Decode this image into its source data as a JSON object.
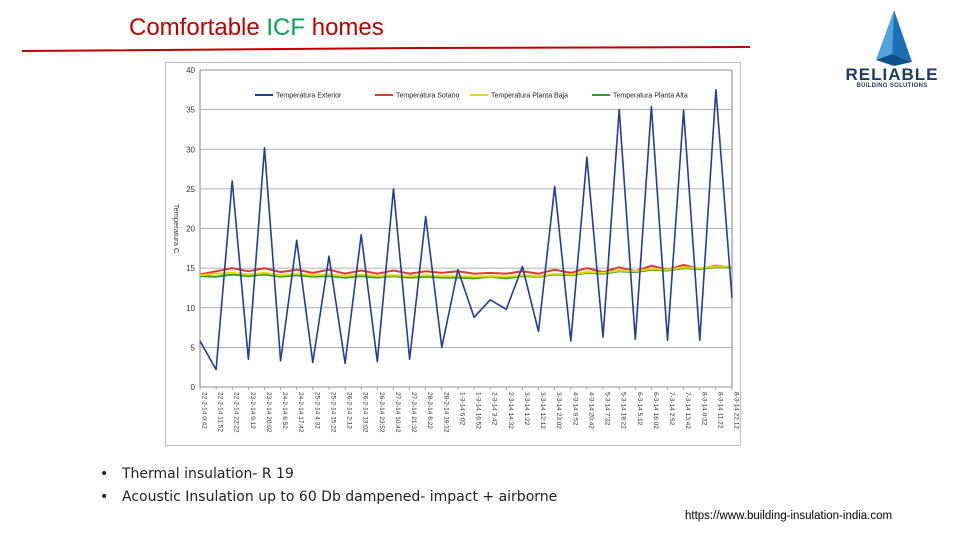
{
  "slide": {
    "title_part1": "Comfortable ",
    "title_accent": "ICF",
    "title_part2": " homes",
    "colors": {
      "title": "#c00000",
      "accent": "#00a650",
      "rule": "#c00000"
    }
  },
  "logo": {
    "icon": "pyramid-logo-icon",
    "name": "RELIABLE",
    "tagline": "BUILDING SOLUTIONS"
  },
  "bullets": [
    {
      "text": "Thermal insulation- R 19"
    },
    {
      "text": "Acoustic Insulation up to 60 Db dampened- impact + airborne"
    }
  ],
  "source_url": "https://www.building-insulation-india.com",
  "chart_data": {
    "type": "line",
    "ylabel": "Temperatura C",
    "ylim": [
      0,
      40
    ],
    "yticks": [
      0,
      5,
      10,
      15,
      20,
      25,
      30,
      35,
      40
    ],
    "grid": true,
    "legend_position": "top",
    "x": [
      "22-2-14 0:42",
      "22-2-14 11:52",
      "22-2-14 22:22",
      "23-2-14 9:12",
      "23-2-14 20:02",
      "24-2-14 6:52",
      "24-2-14 17:42",
      "25-2-14 4:32",
      "25-2-14 15:22",
      "26-2-14 2:12",
      "26-2-14 13:02",
      "26-2-14 23:52",
      "27-2-14 10:42",
      "27-2-14 21:32",
      "28-2-14 8:22",
      "28-2-14 19:12",
      "1-3-14 6:02",
      "1-3-14 16:52",
      "2-3-14 3:42",
      "2-3-14 14:32",
      "3-3-14 1:22",
      "3-3-14 12:12",
      "3-3-14 23:02",
      "4-3-14 9:52",
      "4-3-14 20:42",
      "5-3-14 7:32",
      "5-3-14 18:22",
      "6-3-14 5:12",
      "6-3-14 16:02",
      "7-3-14 2:52",
      "7-3-14 13:42",
      "8-3-14 0:32",
      "8-3-14 11:22",
      "8-3-14 22:12"
    ],
    "series": [
      {
        "name": "Temperatura Exterior",
        "color": "#1f3ea0",
        "values": [
          5.8,
          2.2,
          26.0,
          3.5,
          30.2,
          3.3,
          18.5,
          3.1,
          16.5,
          3.0,
          19.2,
          3.2,
          25.0,
          3.5,
          21.5,
          5.0,
          14.8,
          8.8,
          11.0,
          9.8,
          15.2,
          7.0,
          25.3,
          5.8,
          29.0,
          6.3,
          35.0,
          6.0,
          35.4,
          5.9,
          34.9,
          5.9,
          37.5,
          11.2
        ]
      },
      {
        "name": "Temperatura Sotano",
        "color": "#e03a2f",
        "values": [
          14.2,
          14.6,
          15.0,
          14.6,
          15.0,
          14.5,
          14.8,
          14.4,
          14.8,
          14.3,
          14.7,
          14.3,
          14.7,
          14.3,
          14.6,
          14.4,
          14.6,
          14.3,
          14.4,
          14.3,
          14.6,
          14.3,
          14.8,
          14.4,
          15.0,
          14.5,
          15.1,
          14.6,
          15.3,
          14.8,
          15.4,
          14.9,
          15.3,
          15.1
        ]
      },
      {
        "name": "Temperatura Planta Baja",
        "color": "#e8d800",
        "values": [
          14.1,
          14.3,
          14.4,
          14.2,
          14.4,
          14.1,
          14.3,
          14.1,
          14.2,
          14.0,
          14.2,
          14.0,
          14.1,
          14.0,
          14.1,
          14.0,
          14.0,
          13.9,
          14.0,
          13.9,
          14.1,
          14.0,
          14.3,
          14.2,
          14.5,
          14.4,
          14.7,
          14.6,
          14.9,
          14.8,
          15.1,
          15.0,
          15.2,
          15.2
        ]
      },
      {
        "name": "Temperatura Planta Alta",
        "color": "#2f9e2f",
        "values": [
          14.0,
          13.9,
          14.2,
          14.0,
          14.2,
          13.9,
          14.1,
          13.9,
          14.0,
          13.8,
          14.0,
          13.8,
          14.0,
          13.8,
          13.9,
          13.8,
          13.8,
          13.7,
          13.9,
          13.7,
          14.0,
          13.9,
          14.2,
          14.1,
          14.4,
          14.3,
          14.6,
          14.5,
          14.8,
          14.7,
          15.0,
          14.9,
          15.1,
          15.1
        ]
      }
    ]
  }
}
